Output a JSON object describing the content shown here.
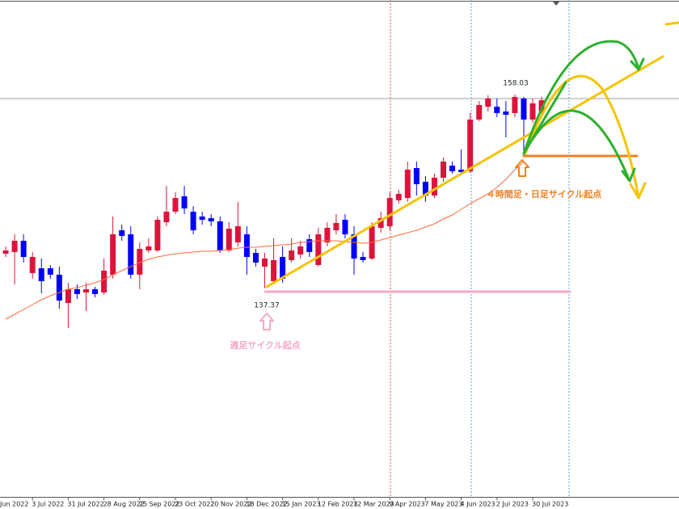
{
  "chart_data": {
    "type": "candlestick",
    "categories": [
      "Jun 2022",
      null,
      null,
      null,
      "3 Jul 2022",
      null,
      null,
      null,
      "31 Jul 2022",
      null,
      null,
      null,
      "28 Aug 2022",
      null,
      null,
      null,
      "25 Sep 2022",
      null,
      null,
      null,
      "23 Oct 2022",
      null,
      null,
      null,
      "20 Nov 2022",
      null,
      null,
      null,
      "18 Dec 2022",
      null,
      null,
      null,
      "15 Jan 2023",
      null,
      null,
      null,
      "12 Feb 2023",
      null,
      null,
      null,
      "12 Mar 2023",
      null,
      null,
      null,
      "9 Apr 2023",
      null,
      null,
      null,
      "7 May 2023",
      null,
      null,
      null,
      "4 Jun 2023",
      null,
      null,
      null,
      "2 Jul 2023",
      null,
      null,
      null,
      "30 Jul 2023",
      null
    ],
    "open": [
      null,
      141.06,
      141.24,
      142.44,
      139.0,
      139.51,
      139.51,
      138.83,
      135.81,
      137.28,
      136.93,
      137.28,
      136.93,
      138.83,
      143.56,
      143.13,
      138.83,
      141.41,
      141.41,
      144.42,
      145.54,
      147.18,
      145.54,
      145.03,
      144.85,
      144.51,
      141.41,
      142.27,
      143.13,
      141.15,
      139.69,
      138.14,
      140.72,
      140.38,
      140.98,
      142.61,
      139.86,
      142.27,
      143.56,
      144.68,
      143.13,
      140.72,
      140.55,
      143.82,
      143.99,
      146.75,
      147.0,
      150.19,
      148.73,
      147.26,
      149.16,
      150.45,
      150.02,
      149.85,
      155.36,
      156.73,
      156.73,
      156.22,
      156.05,
      157.6,
      155.36,
      156.22
    ],
    "high": [
      null,
      141.84,
      143.13,
      143.13,
      141.24,
      140.55,
      139.86,
      139.69,
      137.97,
      137.79,
      137.97,
      137.53,
      140.55,
      145.03,
      144.16,
      143.99,
      142.27,
      142.7,
      145.03,
      148.3,
      147.61,
      148.3,
      146.14,
      145.54,
      145.28,
      145.03,
      144.42,
      146.58,
      143.99,
      141.58,
      141.15,
      142.7,
      141.84,
      142.7,
      142.44,
      143.13,
      143.82,
      144.42,
      145.28,
      145.28,
      143.99,
      141.24,
      144.42,
      145.54,
      147.61,
      147.87,
      150.88,
      150.88,
      149.33,
      149.59,
      151.31,
      150.88,
      152.17,
      156.05,
      157.34,
      157.94,
      157.6,
      157.34,
      158.03,
      157.77,
      157.6,
      157.77
    ],
    "low": [
      null,
      140.72,
      137.79,
      140.12,
      138.4,
      136.85,
      138.4,
      135.21,
      133.14,
      136.24,
      134.95,
      136.42,
      136.67,
      138.4,
      142.44,
      138.4,
      137.28,
      141.15,
      141.24,
      143.99,
      145.28,
      145.28,
      143.13,
      144.16,
      143.99,
      141.15,
      141.24,
      141.84,
      138.83,
      139.69,
      137.37,
      137.79,
      137.97,
      140.12,
      140.55,
      140.72,
      139.69,
      141.84,
      143.13,
      142.7,
      138.83,
      140.12,
      140.38,
      143.3,
      143.56,
      146.4,
      146.58,
      147.26,
      146.58,
      147.0,
      148.73,
      149.59,
      149.59,
      149.67,
      155.19,
      156.22,
      155.62,
      153.46,
      155.62,
      151.74,
      155.01,
      156.05
    ],
    "close": [
      null,
      141.41,
      142.44,
      140.72,
      140.72,
      138.14,
      138.83,
      136.07,
      137.28,
      136.76,
      137.28,
      136.76,
      139.26,
      143.13,
      142.96,
      138.83,
      141.58,
      141.84,
      144.68,
      145.54,
      147.0,
      145.89,
      143.56,
      144.68,
      144.51,
      141.41,
      143.73,
      143.99,
      140.72,
      140.12,
      140.55,
      140.38,
      138.4,
      141.41,
      141.84,
      141.24,
      143.13,
      143.82,
      144.34,
      143.13,
      140.55,
      140.38,
      143.99,
      144.85,
      147.0,
      147.44,
      150.02,
      148.47,
      147.26,
      149.16,
      150.88,
      149.85,
      149.76,
      155.36,
      156.91,
      157.6,
      156.05,
      155.87,
      157.77,
      155.36,
      157.08,
      157.42
    ],
    "ma_values": [
      null,
      134.09,
      134.61,
      135.12,
      135.64,
      136.16,
      136.59,
      136.93,
      137.28,
      137.45,
      137.71,
      137.97,
      138.31,
      138.83,
      139.26,
      139.69,
      140.12,
      140.46,
      140.72,
      140.89,
      141.06,
      141.15,
      141.24,
      141.32,
      141.32,
      141.41,
      141.49,
      141.66,
      141.75,
      141.75,
      141.84,
      141.93,
      142.01,
      142.1,
      142.27,
      142.36,
      142.44,
      142.44,
      142.44,
      142.36,
      142.27,
      142.18,
      142.27,
      142.53,
      142.79,
      143.05,
      143.3,
      143.56,
      143.91,
      144.25,
      144.77,
      145.2,
      145.8,
      146.4,
      146.92,
      147.44,
      148.13,
      148.99,
      150.02,
      150.88,
      null,
      null
    ],
    "ma_color": "#ff6a3d",
    "up_color": "#dc143c",
    "down_color": "#0000ff",
    "ylim": [
      115.15,
      168.1
    ],
    "annotations": [
      "週足サイクル起点",
      "４時間足・日足サイクル起点"
    ]
  }
}
